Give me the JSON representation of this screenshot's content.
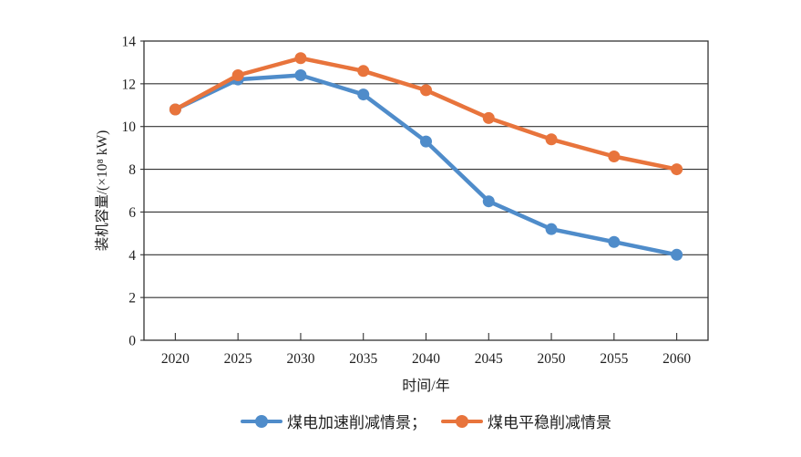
{
  "chart_data": {
    "type": "line",
    "title": "",
    "xlabel": "时间/年",
    "ylabel": "装机容量/(×10⁸ kW)",
    "categories": [
      "2020",
      "2025",
      "2030",
      "2035",
      "2040",
      "2045",
      "2050",
      "2055",
      "2060"
    ],
    "ylim": [
      0,
      14
    ],
    "ytick_step": 2,
    "grid": "horizontal",
    "legend_position": "bottom-center",
    "axis_color": "#333333",
    "text_color": "#1f1f1f",
    "background": "#ffffff",
    "series": [
      {
        "name": "煤电加速削减情景",
        "legend_label": "煤电加速削减情景；",
        "color": "#4F8CCA",
        "values": [
          10.8,
          12.2,
          12.4,
          11.5,
          9.3,
          6.5,
          5.2,
          4.6,
          4.0
        ]
      },
      {
        "name": "煤电平稳削减情景",
        "legend_label": "煤电平稳削减情景",
        "color": "#E8743C",
        "values": [
          10.8,
          12.4,
          13.2,
          12.6,
          11.7,
          10.4,
          9.4,
          8.6,
          8.0
        ]
      }
    ]
  }
}
